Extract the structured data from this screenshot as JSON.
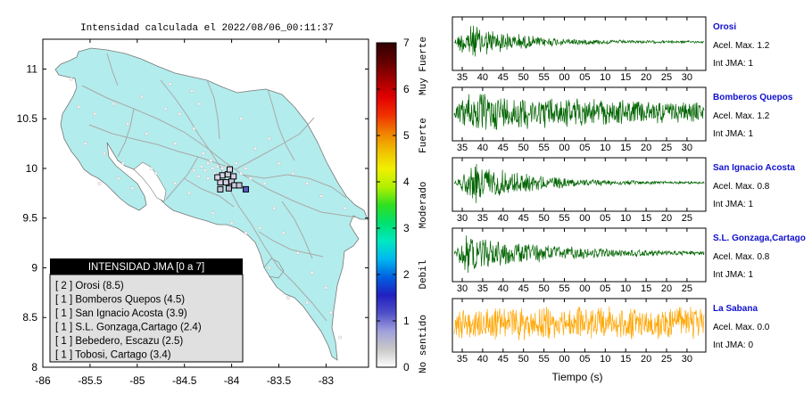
{
  "map": {
    "title": "Intensidad calculada el 2022/08/06_00:11:37",
    "x_ticks": [
      "-86",
      "-85.5",
      "-85",
      "-84.5",
      "-84",
      "-83.5",
      "-83"
    ],
    "x_values": [
      -86,
      -85.5,
      -85,
      -84.5,
      -84,
      -83.5,
      -83
    ],
    "y_ticks": [
      "11",
      "10.5",
      "10",
      "9.5",
      "9",
      "8.5",
      "8"
    ],
    "y_values": [
      11,
      10.5,
      10,
      9.5,
      9,
      8.5,
      8
    ],
    "xlim": [
      -86,
      -82.55
    ],
    "ylim": [
      8,
      11.3
    ],
    "land_color": "#b3ecec",
    "road_color": "#a9a9a9",
    "station_markers": [
      {
        "lon": -84.04,
        "lat": 9.94,
        "color": "#c9c9d9"
      },
      {
        "lon": -84.1,
        "lat": 9.93,
        "color": "#d9d9e6"
      },
      {
        "lon": -84.06,
        "lat": 9.86,
        "color": "#d0d0e0"
      },
      {
        "lon": -84.0,
        "lat": 9.87,
        "color": "#c8c8dc"
      },
      {
        "lon": -83.97,
        "lat": 9.83,
        "color": "#ccccdf"
      },
      {
        "lon": -83.92,
        "lat": 9.83,
        "color": "#c4c4d9"
      },
      {
        "lon": -83.98,
        "lat": 9.92,
        "color": "#d2d2e2"
      },
      {
        "lon": -84.12,
        "lat": 9.86,
        "color": "#cfcfe0"
      },
      {
        "lon": -84.15,
        "lat": 9.91,
        "color": "#d6d6e4"
      },
      {
        "lon": -84.12,
        "lat": 9.79,
        "color": "#c6c6da"
      },
      {
        "lon": -84.03,
        "lat": 9.8,
        "color": "#b5b5cc"
      },
      {
        "lon": -83.85,
        "lat": 9.79,
        "color": "#5a5abf"
      },
      {
        "lon": -84.02,
        "lat": 9.99,
        "color": "#d8d8e6"
      }
    ],
    "small_points": [
      [
        -85.62,
        10.62
      ],
      [
        -85.45,
        10.55
      ],
      [
        -85.25,
        10.65
      ],
      [
        -84.95,
        10.72
      ],
      [
        -84.65,
        10.85
      ],
      [
        -84.42,
        10.78
      ],
      [
        -85.55,
        10.25
      ],
      [
        -85.35,
        10.15
      ],
      [
        -85.15,
        10.05
      ],
      [
        -84.85,
        10.0
      ],
      [
        -84.6,
        10.25
      ],
      [
        -84.4,
        10.4
      ],
      [
        -84.3,
        10.15
      ],
      [
        -84.25,
        10.05
      ],
      [
        -84.2,
        10.0
      ],
      [
        -84.15,
        10.02
      ],
      [
        -84.1,
        10.0
      ],
      [
        -84.05,
        10.02
      ],
      [
        -83.95,
        10.05
      ],
      [
        -83.85,
        10.0
      ],
      [
        -83.75,
        10.2
      ],
      [
        -83.6,
        10.3
      ],
      [
        -83.5,
        10.05
      ],
      [
        -83.35,
        9.95
      ],
      [
        -83.2,
        9.85
      ],
      [
        -83.05,
        9.72
      ],
      [
        -82.8,
        9.6
      ],
      [
        -83.55,
        9.6
      ],
      [
        -83.7,
        9.4
      ],
      [
        -83.45,
        9.35
      ],
      [
        -83.3,
        9.15
      ],
      [
        -83.15,
        8.95
      ],
      [
        -83.0,
        8.8
      ],
      [
        -82.95,
        8.55
      ],
      [
        -83.2,
        8.65
      ],
      [
        -82.85,
        8.3
      ],
      [
        -84.45,
        9.75
      ],
      [
        -84.6,
        9.85
      ],
      [
        -84.8,
        9.95
      ],
      [
        -85.05,
        9.8
      ],
      [
        -85.2,
        9.9
      ],
      [
        -85.4,
        9.85
      ],
      [
        -84.2,
        9.55
      ],
      [
        -84.0,
        9.45
      ],
      [
        -83.85,
        9.35
      ],
      [
        -83.6,
        9.0
      ],
      [
        -83.4,
        8.7
      ],
      [
        -84.55,
        10.55
      ],
      [
        -84.9,
        10.35
      ],
      [
        -85.1,
        10.45
      ],
      [
        -85.7,
        10.9
      ],
      [
        -84.35,
        10.65
      ],
      [
        -84.7,
        10.6
      ],
      [
        -83.9,
        10.5
      ],
      [
        -84.25,
        9.9
      ],
      [
        -84.18,
        9.95
      ],
      [
        -84.22,
        10.08
      ],
      [
        -83.9,
        9.95
      ],
      [
        -83.8,
        9.9
      ],
      [
        -83.65,
        9.85
      ],
      [
        -84.35,
        9.92
      ],
      [
        -84.4,
        9.98
      ],
      [
        -84.28,
        9.98
      ],
      [
        -84.32,
        10.02
      ]
    ]
  },
  "colorbar": {
    "ticks": [
      "0",
      "1",
      "2",
      "3",
      "4",
      "5",
      "6",
      "7"
    ],
    "tick_values": [
      0,
      1,
      2,
      3,
      4,
      5,
      6,
      7
    ],
    "labels": [
      {
        "text": "No sentido",
        "from": 0,
        "to": 1
      },
      {
        "text": "Debil",
        "from": 1,
        "to": 3
      },
      {
        "text": "Moderado",
        "from": 3,
        "to": 4
      },
      {
        "text": "Fuerte",
        "from": 4,
        "to": 6
      },
      {
        "text": "Muy Fuerte",
        "from": 6,
        "to": 7
      }
    ],
    "stops": [
      "#ffffff",
      "#c8c8c8",
      "#a0a0dc",
      "#5050c8",
      "#2020c0",
      "#0060e0",
      "#00b8f0",
      "#00e8c0",
      "#00e070",
      "#30e020",
      "#b0f000",
      "#f0f000",
      "#f0c000",
      "#f08000",
      "#f03000",
      "#e00000",
      "#a00000",
      "#600000",
      "#300000"
    ]
  },
  "legend": {
    "title": "INTENSIDAD JMA [0 a 7]",
    "items": [
      "[ 2 ]  Orosi (8.5)",
      "[ 1 ]  Bomberos Quepos (4.5)",
      "[ 1 ]  San Ignacio Acosta (3.9)",
      "[ 1 ]  S.L. Gonzaga,Cartago (2.4)",
      "[ 1 ]  Bebedero, Escazu (2.5)",
      "[ 1 ]  Tobosi, Cartago (3.4)"
    ]
  },
  "chart_data": [
    {
      "type": "line",
      "title": "Orosi",
      "accel_label": "Acel. Max. 1.2",
      "jma_label": "Int JMA: 1",
      "x_ticks": [
        "35",
        "40",
        "45",
        "50",
        "55",
        "00",
        "05",
        "10",
        "15",
        "20",
        "25",
        "30"
      ],
      "color": "#006400",
      "envelope": {
        "start": 0.0,
        "peak": 0.05,
        "decay": 5.0,
        "noise": 0.05
      }
    },
    {
      "type": "line",
      "title": "Bomberos Quepos",
      "accel_label": "Acel. Max. 1.2",
      "jma_label": "Int JMA: 1",
      "x_ticks": [
        "35",
        "40",
        "45",
        "50",
        "55",
        "00",
        "05",
        "10",
        "15",
        "20",
        "25",
        "30"
      ],
      "color": "#006400",
      "envelope": {
        "start": 0.0,
        "peak": 0.06,
        "decay": 1.2,
        "noise": 0.25
      }
    },
    {
      "type": "line",
      "title": "San Ignacio Acosta",
      "accel_label": "Acel. Max. 0.8",
      "jma_label": "Int JMA: 1",
      "x_ticks": [
        "30",
        "35",
        "40",
        "45",
        "50",
        "55",
        "00",
        "05",
        "10",
        "15",
        "20",
        "25"
      ],
      "color": "#006400",
      "envelope": {
        "start": 0.0,
        "peak": 0.08,
        "decay": 4.0,
        "noise": 0.03
      }
    },
    {
      "type": "line",
      "title": "S.L. Gonzaga,Cartago",
      "accel_label": "Acel. Max. 0.8",
      "jma_label": "Int JMA: 1",
      "x_ticks": [
        "30",
        "35",
        "40",
        "45",
        "50",
        "55",
        "00",
        "05",
        "10",
        "15",
        "20",
        "25"
      ],
      "color": "#006400",
      "envelope": {
        "start": 0.0,
        "peak": 0.04,
        "decay": 3.0,
        "noise": 0.05
      }
    },
    {
      "type": "line",
      "title": "La Sabana",
      "accel_label": "Acel. Max. 0.0",
      "jma_label": "Int JMA: 0",
      "x_ticks": [
        "35",
        "40",
        "45",
        "50",
        "55",
        "00",
        "05",
        "10",
        "15",
        "20",
        "25",
        "30"
      ],
      "xlabel": "Tiempo (s)",
      "color": "#ffa500",
      "envelope": {
        "start": 0.0,
        "peak": 0.0,
        "decay": 0.0,
        "noise": 0.8
      }
    }
  ]
}
